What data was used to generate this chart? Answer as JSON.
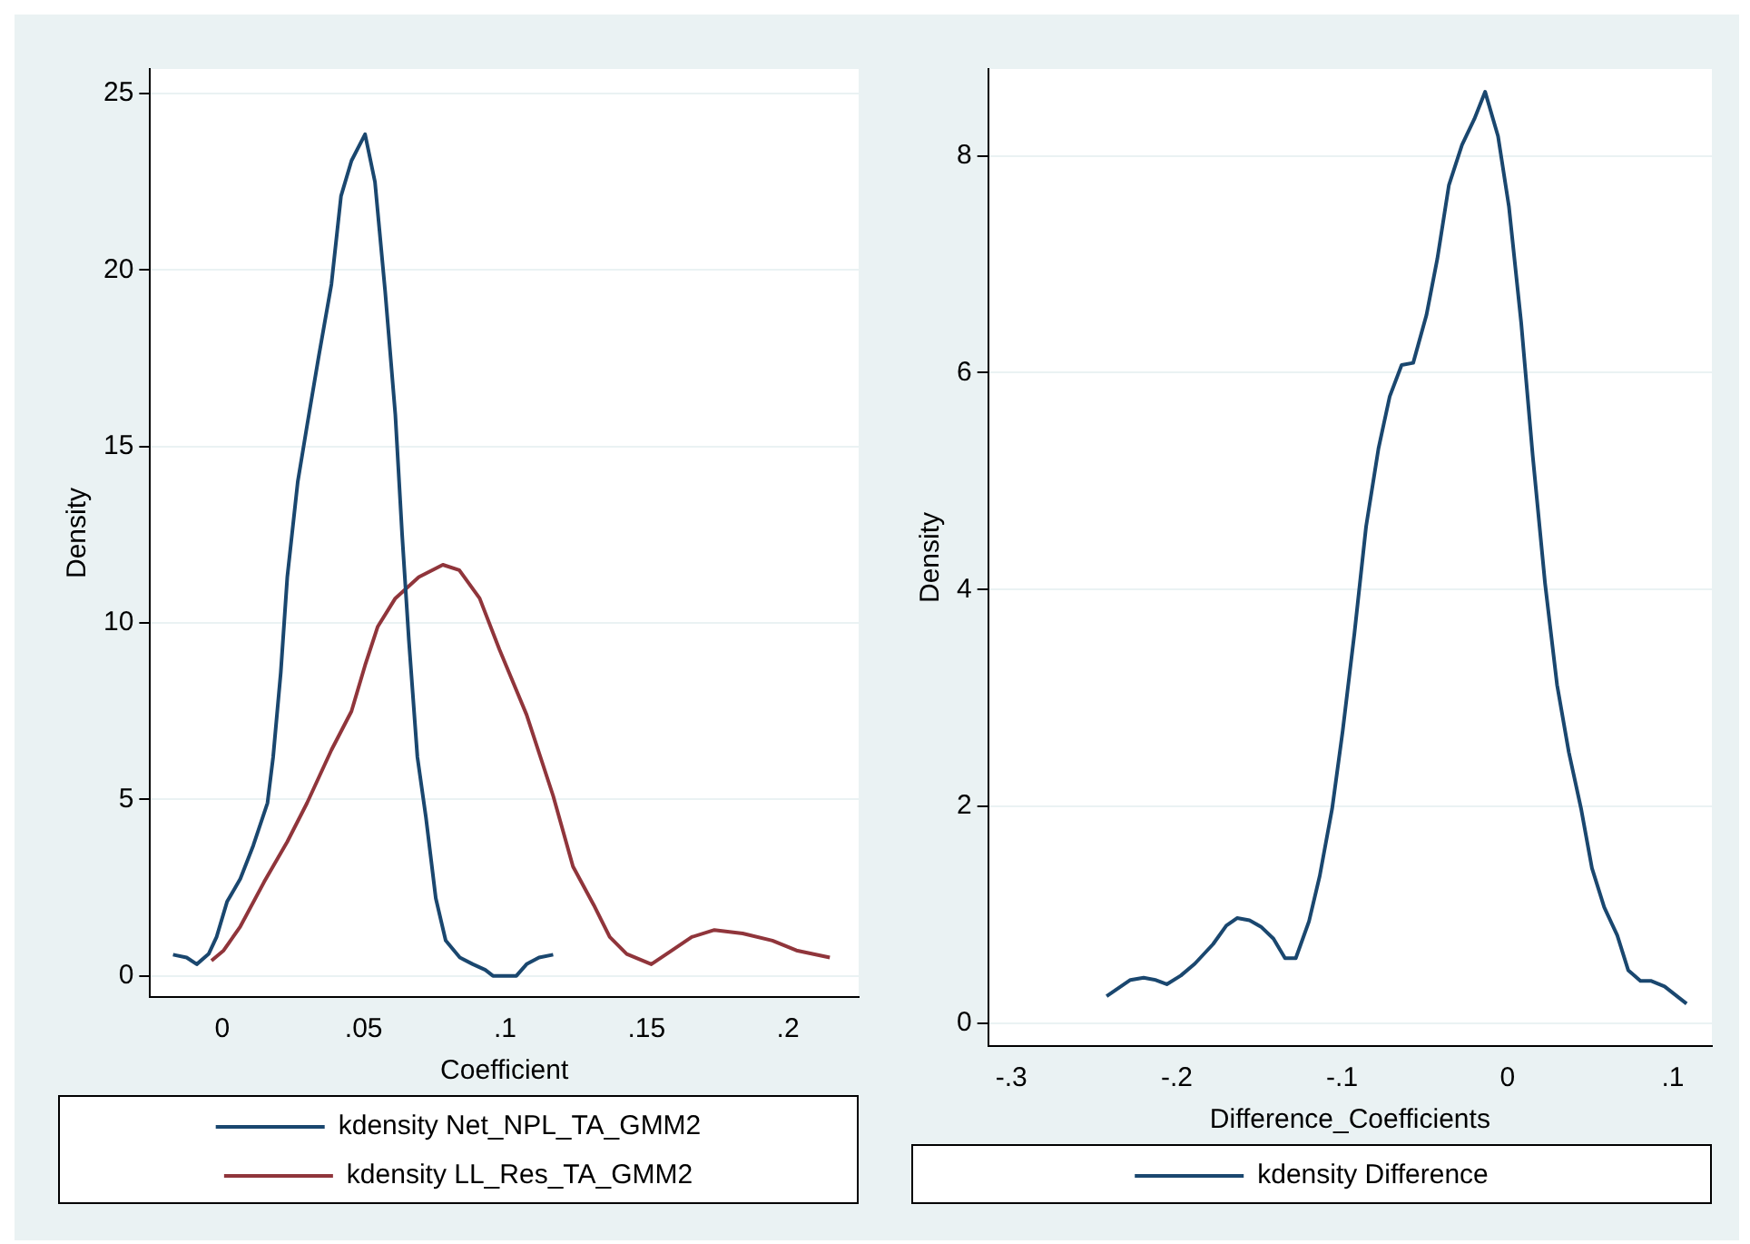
{
  "chart_data": [
    {
      "type": "line",
      "xlabel": "Coefficient",
      "ylabel": "Density",
      "xlim": [
        -0.0255,
        0.225
      ],
      "ylim": [
        -0.6,
        25.7
      ],
      "xticks": [
        0,
        {
          "value": 0.05,
          "label": ".05"
        },
        {
          "value": 0.1,
          "label": ".1"
        },
        {
          "value": 0.15,
          "label": ".15"
        },
        {
          "value": 0.2,
          "label": ".2"
        }
      ],
      "yticks": [
        0,
        5,
        10,
        15,
        20,
        25
      ],
      "grid": "y",
      "legend": "bottom",
      "marker": "none",
      "line_style": "solid",
      "series": [
        {
          "name": "kdensity Net_NPL_TA_GMM2",
          "color": "#1a476f",
          "x": [
            -0.0174,
            -0.0126,
            -0.009,
            -0.0048,
            -0.002,
            0.0017,
            0.0064,
            0.011,
            0.016,
            0.018,
            0.0207,
            0.023,
            0.0267,
            0.03,
            0.034,
            0.0386,
            0.042,
            0.0457,
            0.0505,
            0.054,
            0.0576,
            0.0612,
            0.0636,
            0.066,
            0.069,
            0.072,
            0.0755,
            0.079,
            0.084,
            0.0886,
            0.093,
            0.0957,
            0.104,
            0.1076,
            0.112,
            0.117
          ],
          "values": [
            0.6,
            0.52,
            0.33,
            0.62,
            1.1,
            2.1,
            2.75,
            3.7,
            4.9,
            6.2,
            8.6,
            11.3,
            14.0,
            15.6,
            17.5,
            19.6,
            22.1,
            23.1,
            23.85,
            22.5,
            19.4,
            15.9,
            12.5,
            9.5,
            6.2,
            4.5,
            2.2,
            1.0,
            0.52,
            0.33,
            0.17,
            0,
            0,
            0.33,
            0.52,
            0.6
          ]
        },
        {
          "name": "kdensity LL_Res_TA_GMM2",
          "color": "#90353b",
          "x": [
            -0.0038,
            0.0005,
            0.0064,
            0.0148,
            0.023,
            0.03,
            0.0386,
            0.0457,
            0.0505,
            0.055,
            0.0612,
            0.0695,
            0.078,
            0.0838,
            0.091,
            0.098,
            0.1076,
            0.117,
            0.124,
            0.1314,
            0.137,
            0.143,
            0.1517,
            0.159,
            0.166,
            0.174,
            0.184,
            0.1945,
            0.203,
            0.2148
          ],
          "values": [
            0.43,
            0.72,
            1.4,
            2.66,
            3.8,
            4.9,
            6.4,
            7.5,
            8.8,
            9.9,
            10.7,
            11.3,
            11.65,
            11.5,
            10.7,
            9.25,
            7.4,
            5.1,
            3.1,
            2.0,
            1.1,
            0.62,
            0.33,
            0.72,
            1.1,
            1.3,
            1.2,
            1.0,
            0.72,
            0.52
          ]
        }
      ]
    },
    {
      "type": "line",
      "xlabel": "Difference_Coefficients",
      "ylabel": "Density",
      "xlim": [
        -0.314,
        0.1236
      ],
      "ylim": [
        -0.21,
        8.8
      ],
      "xticks": [
        {
          "value": -0.3,
          "label": "-.3"
        },
        {
          "value": -0.2,
          "label": "-.2"
        },
        {
          "value": -0.1,
          "label": "-.1"
        },
        0,
        {
          "value": 0.1,
          "label": ".1"
        }
      ],
      "yticks": [
        0,
        2,
        4,
        6,
        8
      ],
      "grid": "y",
      "legend": "bottom",
      "marker": "none",
      "line_style": "solid",
      "series": [
        {
          "name": "kdensity Difference",
          "color": "#1a476f",
          "x": [
            -0.2424,
            -0.228,
            -0.22,
            -0.213,
            -0.206,
            -0.1975,
            -0.189,
            -0.178,
            -0.17,
            -0.1635,
            -0.156,
            -0.149,
            -0.1415,
            -0.1345,
            -0.128,
            -0.12,
            -0.1135,
            -0.106,
            -0.0996,
            -0.0925,
            -0.0855,
            -0.078,
            -0.0712,
            -0.064,
            -0.057,
            -0.049,
            -0.0424,
            -0.0354,
            -0.0275,
            -0.02,
            -0.0135,
            -0.0057,
            0.0009,
            0.0083,
            0.0153,
            0.0227,
            0.03,
            0.0371,
            0.0445,
            0.0511,
            0.0585,
            0.0664,
            0.073,
            0.0804,
            0.087,
            0.095,
            0.1083
          ],
          "values": [
            0.25,
            0.4,
            0.42,
            0.4,
            0.36,
            0.44,
            0.55,
            0.73,
            0.9,
            0.97,
            0.95,
            0.89,
            0.78,
            0.6,
            0.6,
            0.94,
            1.36,
            1.98,
            2.7,
            3.6,
            4.58,
            5.3,
            5.78,
            6.07,
            6.09,
            6.53,
            7.05,
            7.73,
            8.1,
            8.34,
            8.59,
            8.18,
            7.53,
            6.46,
            5.23,
            4.06,
            3.12,
            2.5,
            1.98,
            1.43,
            1.07,
            0.81,
            0.49,
            0.39,
            0.39,
            0.34,
            0.18
          ]
        }
      ]
    }
  ]
}
